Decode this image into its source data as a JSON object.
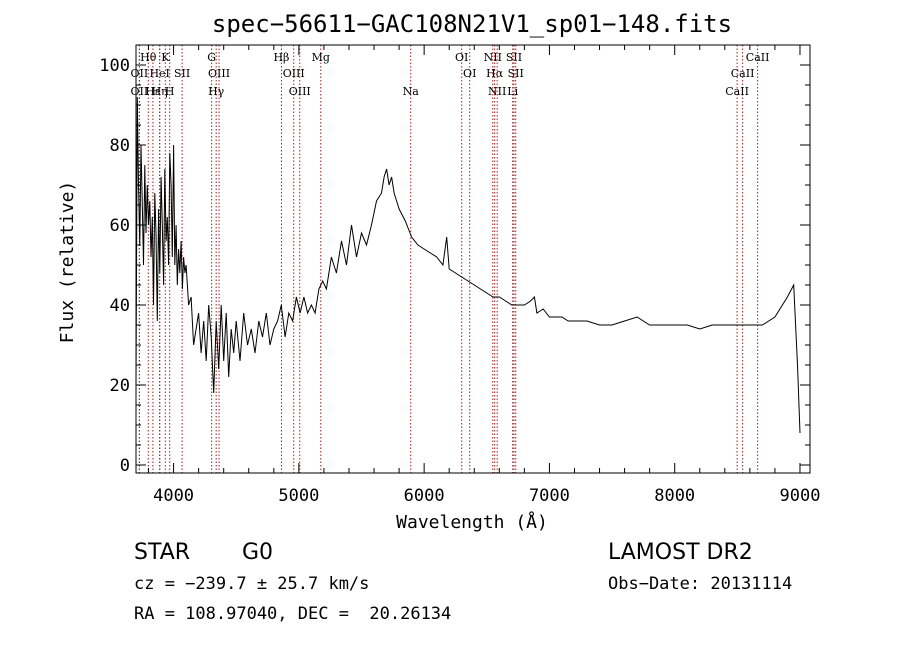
{
  "chart_data": {
    "type": "line",
    "title": "spec−56611−GAC108N21V1_sp01−148.fits",
    "xlabel": "Wavelength (Å)",
    "ylabel": "Flux (relative)",
    "xlim": [
      3700,
      9080
    ],
    "ylim": [
      -2,
      105
    ],
    "xticks": [
      4000,
      5000,
      6000,
      7000,
      8000,
      9000
    ],
    "yticks": [
      0,
      20,
      40,
      60,
      80,
      100
    ],
    "grid": false,
    "line_color": "#000000",
    "marker_color": "#a02020",
    "series": [
      {
        "x": [
          3700,
          3710,
          3720,
          3730,
          3740,
          3750,
          3760,
          3770,
          3780,
          3790,
          3800,
          3810,
          3820,
          3830,
          3840,
          3850,
          3860,
          3870,
          3880,
          3890,
          3900,
          3910,
          3920,
          3930,
          3940,
          3950,
          3960,
          3970,
          3980,
          3990,
          4000,
          4010,
          4020,
          4030,
          4040,
          4050,
          4060,
          4070,
          4080,
          4090,
          4100,
          4120,
          4140,
          4160,
          4180,
          4200,
          4220,
          4240,
          4260,
          4280,
          4300,
          4320,
          4340,
          4360,
          4380,
          4400,
          4420,
          4440,
          4460,
          4480,
          4500,
          4530,
          4560,
          4590,
          4620,
          4650,
          4680,
          4710,
          4740,
          4770,
          4800,
          4830,
          4860,
          4890,
          4920,
          4950,
          4980,
          5010,
          5040,
          5070,
          5100,
          5130,
          5160,
          5190,
          5220,
          5260,
          5300,
          5340,
          5380,
          5420,
          5460,
          5500,
          5540,
          5580,
          5620,
          5660,
          5680,
          5690,
          5700,
          5720,
          5740,
          5760,
          5780,
          5800,
          5850,
          5900,
          5950,
          6000,
          6050,
          6100,
          6150,
          6180,
          6200,
          6250,
          6300,
          6350,
          6400,
          6450,
          6500,
          6550,
          6600,
          6650,
          6700,
          6750,
          6800,
          6850,
          6880,
          6900,
          6950,
          7000,
          7050,
          7100,
          7150,
          7200,
          7300,
          7400,
          7500,
          7600,
          7700,
          7800,
          7900,
          8000,
          8100,
          8200,
          8300,
          8400,
          8500,
          8600,
          8700,
          8800,
          8900,
          8950,
          8980,
          9000
        ],
        "y": [
          20,
          92,
          70,
          55,
          80,
          65,
          50,
          75,
          58,
          70,
          60,
          66,
          52,
          62,
          40,
          68,
          58,
          36,
          64,
          48,
          72,
          60,
          45,
          74,
          56,
          62,
          50,
          78,
          70,
          52,
          80,
          50,
          60,
          45,
          54,
          48,
          56,
          44,
          52,
          48,
          50,
          40,
          42,
          30,
          34,
          38,
          28,
          36,
          26,
          40,
          32,
          18,
          36,
          24,
          40,
          26,
          38,
          22,
          34,
          28,
          36,
          26,
          38,
          30,
          34,
          28,
          36,
          32,
          38,
          30,
          34,
          36,
          40,
          32,
          38,
          36,
          42,
          38,
          42,
          38,
          40,
          38,
          44,
          46,
          44,
          52,
          48,
          56,
          50,
          60,
          52,
          58,
          55,
          60,
          66,
          68,
          72,
          73,
          74,
          70,
          72,
          68,
          66,
          64,
          61,
          57,
          55,
          54,
          53,
          52,
          50,
          57,
          49,
          48,
          47,
          46,
          45,
          44,
          43,
          42,
          42,
          41,
          40,
          40,
          40,
          41,
          42,
          38,
          39,
          37,
          37,
          37,
          36,
          36,
          36,
          35,
          35,
          36,
          37,
          35,
          35,
          35,
          35,
          34,
          35,
          35,
          35,
          35,
          35,
          37,
          42,
          45,
          25,
          8
        ]
      }
    ],
    "line_markers": [
      {
        "label": "Hθ",
        "x": 3798,
        "row": 0
      },
      {
        "label": "OII",
        "x": 3727,
        "row": 1
      },
      {
        "label": "OII",
        "x": 3727,
        "row": 2
      },
      {
        "label": "Hε",
        "x": 3835,
        "row": 2
      },
      {
        "label": "K",
        "x": 3934,
        "row": 0
      },
      {
        "label": "HeI",
        "x": 3889,
        "row": 1
      },
      {
        "label": "SII",
        "x": 4068,
        "row": 1
      },
      {
        "label": "Hη",
        "x": 3889,
        "row": 2
      },
      {
        "label": "H",
        "x": 3969,
        "row": 2
      },
      {
        "label": "G",
        "x": 4304,
        "row": 0
      },
      {
        "label": "OIII",
        "x": 4363,
        "row": 1
      },
      {
        "label": "Hγ",
        "x": 4340,
        "row": 2
      },
      {
        "label": "Hβ",
        "x": 4861,
        "row": 0
      },
      {
        "label": "OIII",
        "x": 4959,
        "row": 1
      },
      {
        "label": "OIII",
        "x": 5007,
        "row": 2
      },
      {
        "label": "Mg",
        "x": 5175,
        "row": 0
      },
      {
        "label": "Na",
        "x": 5893,
        "row": 2
      },
      {
        "label": "OI",
        "x": 6300,
        "row": 0
      },
      {
        "label": "OI",
        "x": 6364,
        "row": 1
      },
      {
        "label": "NII",
        "x": 6548,
        "row": 0
      },
      {
        "label": "SII",
        "x": 6717,
        "row": 0
      },
      {
        "label": "Hα",
        "x": 6563,
        "row": 1
      },
      {
        "label": "SII",
        "x": 6731,
        "row": 1
      },
      {
        "label": "NII",
        "x": 6583,
        "row": 2
      },
      {
        "label": "Li",
        "x": 6707,
        "row": 2
      },
      {
        "label": "CaII",
        "x": 8662,
        "row": 0
      },
      {
        "label": "CaII",
        "x": 8542,
        "row": 1
      },
      {
        "label": "CaII",
        "x": 8498,
        "row": 2
      }
    ]
  },
  "info": {
    "object_class": "STAR",
    "subclass": "G0",
    "survey": "LAMOST DR2",
    "redshift": "cz = −239.7 ± 25.7 km/s",
    "obs_date": "Obs−Date: 20131114",
    "coords": "RA = 108.97040, DEC =  20.26134"
  }
}
